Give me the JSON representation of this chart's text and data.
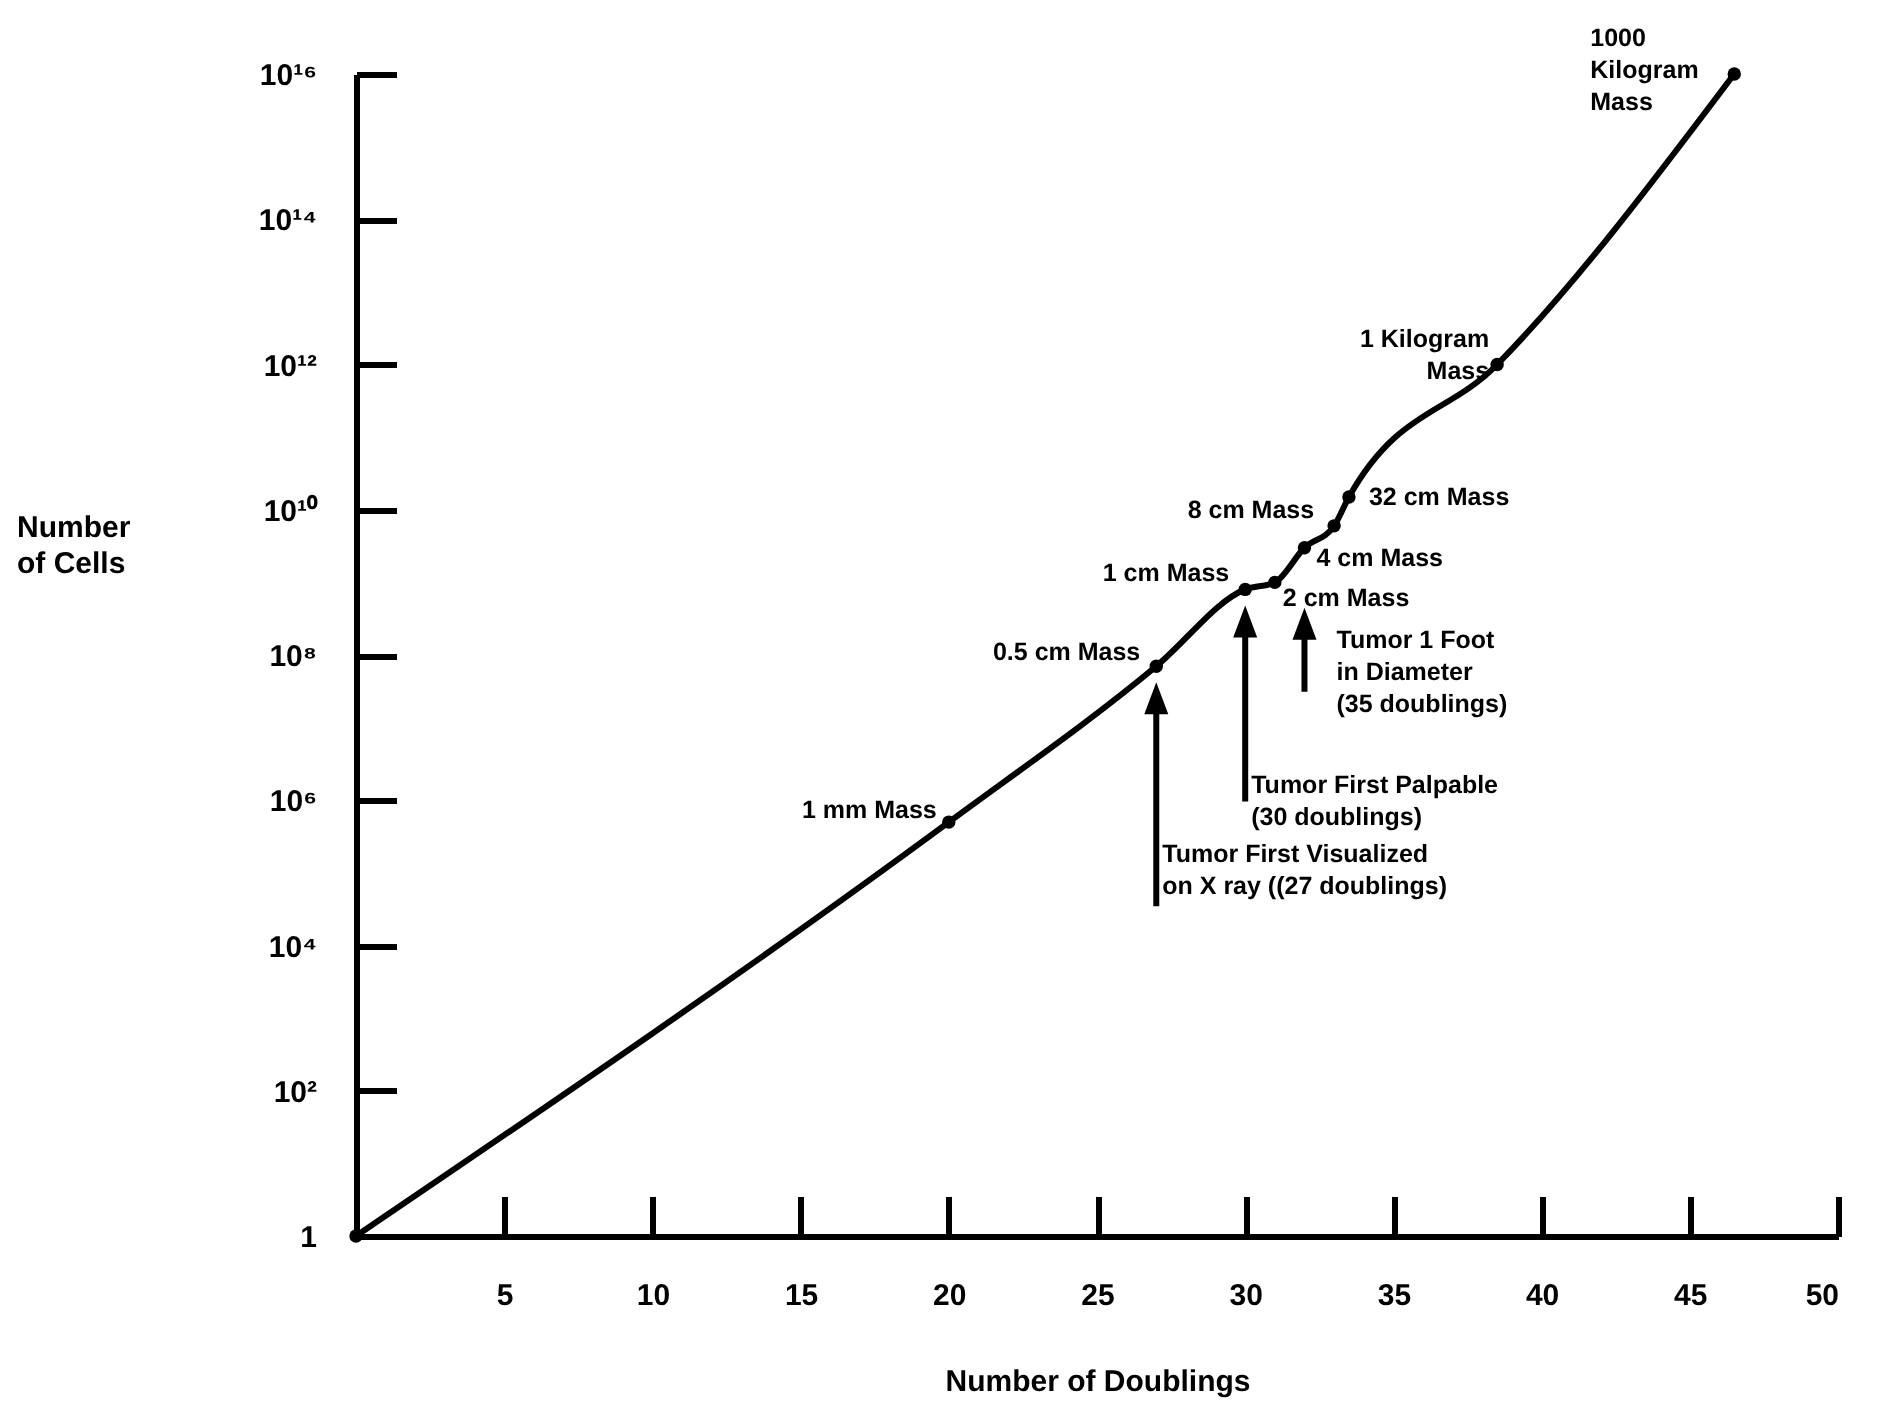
{
  "chart_data": {
    "type": "line",
    "xlabel": "Number of Doublings",
    "ylabel": "Number\nof Cells",
    "x": [
      0,
      20,
      27,
      30,
      31,
      32,
      33,
      33.5,
      38.5,
      46.5
    ],
    "series": [
      {
        "color": "#000000",
        "values": [
          1,
          500000,
          70000000,
          800000000,
          1000000000,
          3000000000,
          6000000000,
          15000000000,
          1000000000000,
          10000000000000000
        ]
      }
    ],
    "marker": "circle",
    "log": true,
    "xlim": [
      0,
      50
    ],
    "xticks": [
      5,
      10,
      15,
      20,
      25,
      30,
      35,
      40,
      45,
      50
    ],
    "ylim": [
      1,
      10000000000000000
    ],
    "yticks": [
      1,
      {
        "value": 100,
        "label": "10²"
      },
      {
        "value": 10000,
        "label": "10⁴"
      },
      {
        "value": 1000000,
        "label": "10⁶"
      },
      {
        "value": 100000000,
        "label": "10⁸"
      },
      {
        "value": 10000000000,
        "label": "10¹⁰"
      },
      {
        "value": 1000000000000,
        "label": "10¹²"
      },
      {
        "value": 100000000000000,
        "label": "10¹⁴"
      },
      {
        "value": 10000000000000000,
        "label": "10¹⁶"
      }
    ],
    "annotations": [
      {
        "text": "1 mm Mass",
        "x": 20,
        "y": 500000
      },
      {
        "text": "0.5 cm Mass",
        "x": 27,
        "y": 70000000
      },
      {
        "text": "1 cm Mass",
        "x": 30,
        "y": 800000000
      },
      {
        "text": "2 cm Mass",
        "x": 31,
        "y": 1000000000
      },
      {
        "text": "4 cm Mass",
        "x": 32,
        "y": 3000000000
      },
      {
        "text": "8 cm Mass",
        "x": 33,
        "y": 6000000000
      },
      {
        "text": "32 cm Mass",
        "x": 33.5,
        "y": 15000000000
      },
      {
        "text": "1 Kilogram\nMass",
        "x": 38.5,
        "y": 1000000000000
      },
      {
        "text": "1000\nKilogram\nMass",
        "x": 46.5,
        "y": 10000000000000000
      },
      "Tumor First Visualized\non X ray ((27 doublings)",
      "Tumor First Palpable\n(30 doublings)",
      "Tumor 1  Foot\nin Diameter\n(35 doublings)"
    ]
  }
}
